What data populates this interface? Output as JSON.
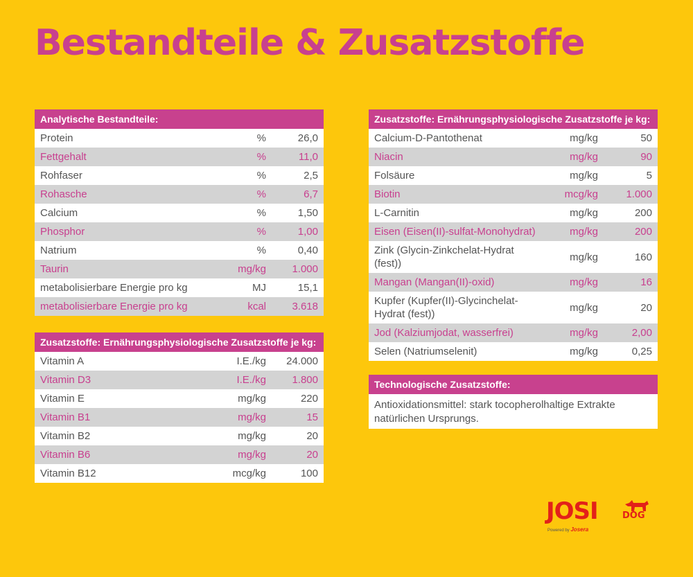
{
  "title": "Bestandteile & Zusatzstoffe",
  "colors": {
    "background": "#fdc70c",
    "accent": "#c8418e",
    "brand": "#e32119"
  },
  "analytisch": {
    "header": "Analytische Bestandteile:",
    "rows": [
      {
        "name": "Protein",
        "unit": "%",
        "value": "26,0"
      },
      {
        "name": "Fettgehalt",
        "unit": "%",
        "value": "11,0"
      },
      {
        "name": "Rohfaser",
        "unit": "%",
        "value": "2,5"
      },
      {
        "name": "Rohasche",
        "unit": "%",
        "value": "6,7"
      },
      {
        "name": "Calcium",
        "unit": "%",
        "value": "1,50"
      },
      {
        "name": "Phosphor",
        "unit": "%",
        "value": "1,00"
      },
      {
        "name": "Natrium",
        "unit": "%",
        "value": "0,40"
      },
      {
        "name": "Taurin",
        "unit": "mg/kg",
        "value": "1.000"
      },
      {
        "name": "metabolisierbare Energie pro kg",
        "unit": "MJ",
        "value": "15,1"
      },
      {
        "name": "metabolisierbare Energie pro kg",
        "unit": "kcal",
        "value": "3.618"
      }
    ]
  },
  "vitamine": {
    "header": "Zusatzstoffe: Ernährungsphysiologische Zusatzstoffe je kg:",
    "rows": [
      {
        "name": "Vitamin A",
        "unit": "I.E./kg",
        "value": "24.000"
      },
      {
        "name": "Vitamin D3",
        "unit": "I.E./kg",
        "value": "1.800"
      },
      {
        "name": "Vitamin E",
        "unit": "mg/kg",
        "value": "220"
      },
      {
        "name": "Vitamin B1",
        "unit": "mg/kg",
        "value": "15"
      },
      {
        "name": "Vitamin B2",
        "unit": "mg/kg",
        "value": "20"
      },
      {
        "name": "Vitamin B6",
        "unit": "mg/kg",
        "value": "20"
      },
      {
        "name": "Vitamin B12",
        "unit": "mcg/kg",
        "value": "100"
      }
    ]
  },
  "mineralien": {
    "header": "Zusatzstoffe: Ernährungsphysiologische Zusatzstoffe je kg:",
    "rows": [
      {
        "name": "Calcium-D-Pantothenat",
        "unit": "mg/kg",
        "value": "50"
      },
      {
        "name": "Niacin",
        "unit": "mg/kg",
        "value": "90"
      },
      {
        "name": "Folsäure",
        "unit": "mg/kg",
        "value": "5"
      },
      {
        "name": "Biotin",
        "unit": "mcg/kg",
        "value": "1.000"
      },
      {
        "name": "L-Carnitin",
        "unit": "mg/kg",
        "value": "200"
      },
      {
        "name": "Eisen (Eisen(II)-sulfat-Monohydrat)",
        "unit": "mg/kg",
        "value": "200"
      },
      {
        "name": "Zink (Glycin-Zinkchelat-Hydrat (fest))",
        "unit": "mg/kg",
        "value": "160"
      },
      {
        "name": "Mangan (Mangan(II)-oxid)",
        "unit": "mg/kg",
        "value": "16"
      },
      {
        "name": "Kupfer (Kupfer(II)-Glycinchelat-Hydrat (fest))",
        "unit": "mg/kg",
        "value": "20"
      },
      {
        "name": "Jod (Kalziumjodat, wasserfrei)",
        "unit": "mg/kg",
        "value": "2,00"
      },
      {
        "name": "Selen (Natriumselenit)",
        "unit": "mg/kg",
        "value": "0,25"
      }
    ]
  },
  "technologisch": {
    "header": "Technologische Zusatzstoffe:",
    "text": "Antioxidationsmittel: stark tocopherolhaltige Extrakte natürlichen Ursprungs."
  },
  "logo": {
    "josi": "JOSI",
    "dog": "DOG",
    "powered_by": "Powered by",
    "josera": "Josera",
    "icon": "dog-icon"
  }
}
